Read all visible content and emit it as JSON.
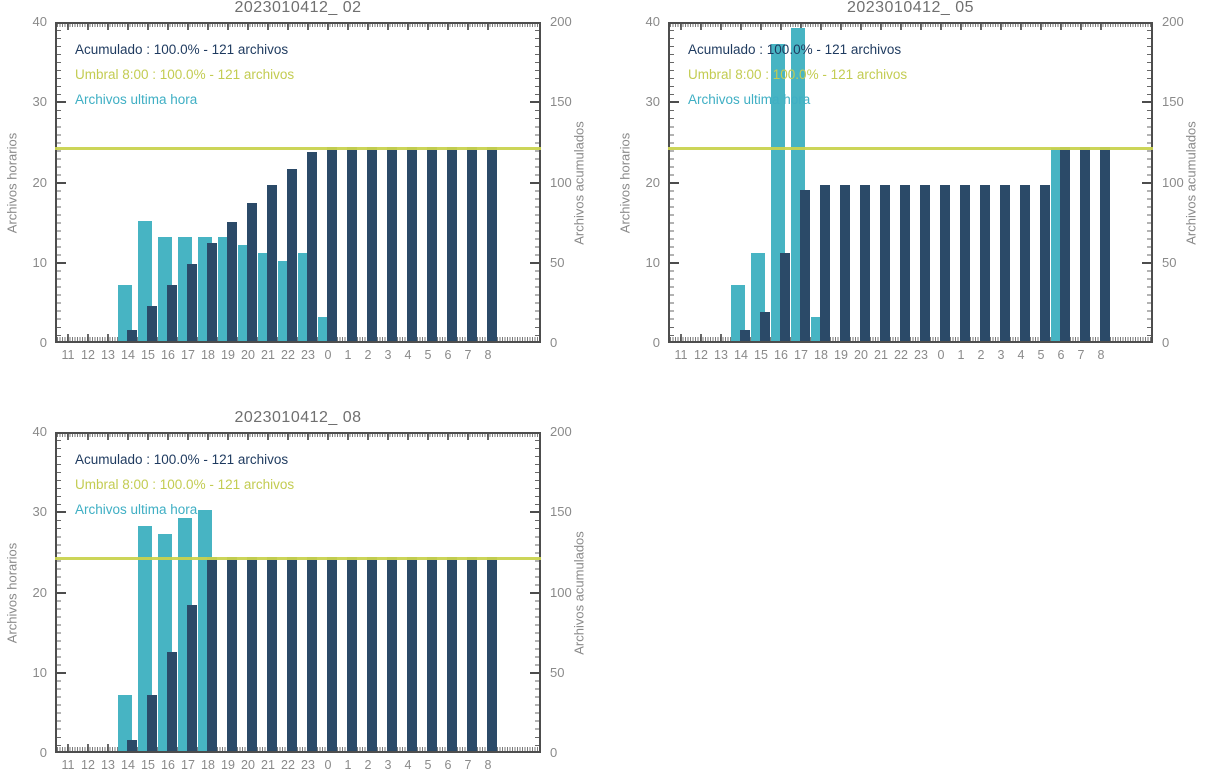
{
  "colors": {
    "hourly": "#47b4c3",
    "accumulated": "#2b4a68",
    "threshold": "#c9d34f",
    "legend_accumulated": "#1e3a5f",
    "legend_threshold": "#c3cc52",
    "legend_hourly": "#3fafc4",
    "axis": "#4d4d4d",
    "tick_label": "#8a8a8a",
    "title": "#6f6f6f",
    "background": "#ffffff"
  },
  "chart_data": [
    {
      "type": "bar",
      "title": "2023010412_ 02",
      "ylabel": "Archivos horarios",
      "y2label": "Archivos acumulados",
      "ylim": [
        0,
        40
      ],
      "y2lim": [
        0,
        200
      ],
      "yticks": [
        0,
        10,
        20,
        30,
        40
      ],
      "y2ticks": [
        0,
        50,
        100,
        150,
        200
      ],
      "legend": [
        "Acumulado : 100.0% - 121 archivos",
        "Umbral 8:00 : 100.0% - 121 archivos",
        "Archivos ultima hora"
      ],
      "threshold": {
        "name": "Umbral 8:00",
        "value": 121,
        "axis": "right"
      },
      "categories": [
        "11",
        "12",
        "13",
        "14",
        "15",
        "16",
        "17",
        "18",
        "19",
        "20",
        "21",
        "22",
        "23",
        "0",
        "1",
        "2",
        "3",
        "4",
        "5",
        "6",
        "7",
        "8"
      ],
      "series": [
        {
          "name": "Archivos ultima hora",
          "axis": "left",
          "values": [
            0,
            0,
            0,
            7,
            15,
            13,
            13,
            13,
            13,
            12,
            11,
            10,
            11,
            3,
            0,
            0,
            0,
            0,
            0,
            0,
            0,
            0
          ]
        },
        {
          "name": "Acumulado",
          "axis": "right",
          "values": [
            0,
            0,
            0,
            7,
            22,
            35,
            48,
            61,
            74,
            86,
            97,
            107,
            118,
            121,
            121,
            121,
            121,
            121,
            121,
            121,
            121,
            121
          ]
        }
      ]
    },
    {
      "type": "bar",
      "title": "2023010412_ 05",
      "ylabel": "Archivos horarios",
      "y2label": "Archivos acumulados",
      "ylim": [
        0,
        40
      ],
      "y2lim": [
        0,
        200
      ],
      "yticks": [
        0,
        10,
        20,
        30,
        40
      ],
      "y2ticks": [
        0,
        50,
        100,
        150,
        200
      ],
      "legend": [
        "Acumulado : 100.0% - 121 archivos",
        "Umbral 8:00 : 100.0% - 121 archivos",
        "Archivos ultima hora"
      ],
      "threshold": {
        "name": "Umbral 8:00",
        "value": 121,
        "axis": "right"
      },
      "categories": [
        "11",
        "12",
        "13",
        "14",
        "15",
        "16",
        "17",
        "18",
        "19",
        "20",
        "21",
        "22",
        "23",
        "0",
        "1",
        "2",
        "3",
        "4",
        "5",
        "6",
        "7",
        "8"
      ],
      "series": [
        {
          "name": "Archivos ultima hora",
          "axis": "left",
          "values": [
            0,
            0,
            0,
            7,
            11,
            37,
            39,
            3,
            0,
            0,
            0,
            0,
            0,
            0,
            0,
            0,
            0,
            0,
            0,
            24,
            0,
            0
          ]
        },
        {
          "name": "Acumulado",
          "axis": "right",
          "values": [
            0,
            0,
            0,
            7,
            18,
            55,
            94,
            97,
            97,
            97,
            97,
            97,
            97,
            97,
            97,
            97,
            97,
            97,
            97,
            121,
            121,
            121
          ]
        }
      ]
    },
    {
      "type": "bar",
      "title": "2023010412_ 08",
      "ylabel": "Archivos horarios",
      "y2label": "Archivos acumulados",
      "ylim": [
        0,
        40
      ],
      "y2lim": [
        0,
        200
      ],
      "yticks": [
        0,
        10,
        20,
        30,
        40
      ],
      "y2ticks": [
        0,
        50,
        100,
        150,
        200
      ],
      "legend": [
        "Acumulado : 100.0% - 121 archivos",
        "Umbral 8:00 : 100.0% - 121 archivos",
        "Archivos ultima hora"
      ],
      "threshold": {
        "name": "Umbral 8:00",
        "value": 121,
        "axis": "right"
      },
      "categories": [
        "11",
        "12",
        "13",
        "14",
        "15",
        "16",
        "17",
        "18",
        "19",
        "20",
        "21",
        "22",
        "23",
        "0",
        "1",
        "2",
        "3",
        "4",
        "5",
        "6",
        "7",
        "8"
      ],
      "series": [
        {
          "name": "Archivos ultima hora",
          "axis": "left",
          "values": [
            0,
            0,
            0,
            7,
            28,
            27,
            29,
            30,
            0,
            0,
            0,
            0,
            0,
            0,
            0,
            0,
            0,
            0,
            0,
            0,
            0,
            0
          ]
        },
        {
          "name": "Acumulado",
          "axis": "right",
          "values": [
            0,
            0,
            0,
            7,
            35,
            62,
            91,
            121,
            121,
            121,
            121,
            121,
            121,
            121,
            121,
            121,
            121,
            121,
            121,
            121,
            121,
            121
          ]
        }
      ]
    }
  ]
}
